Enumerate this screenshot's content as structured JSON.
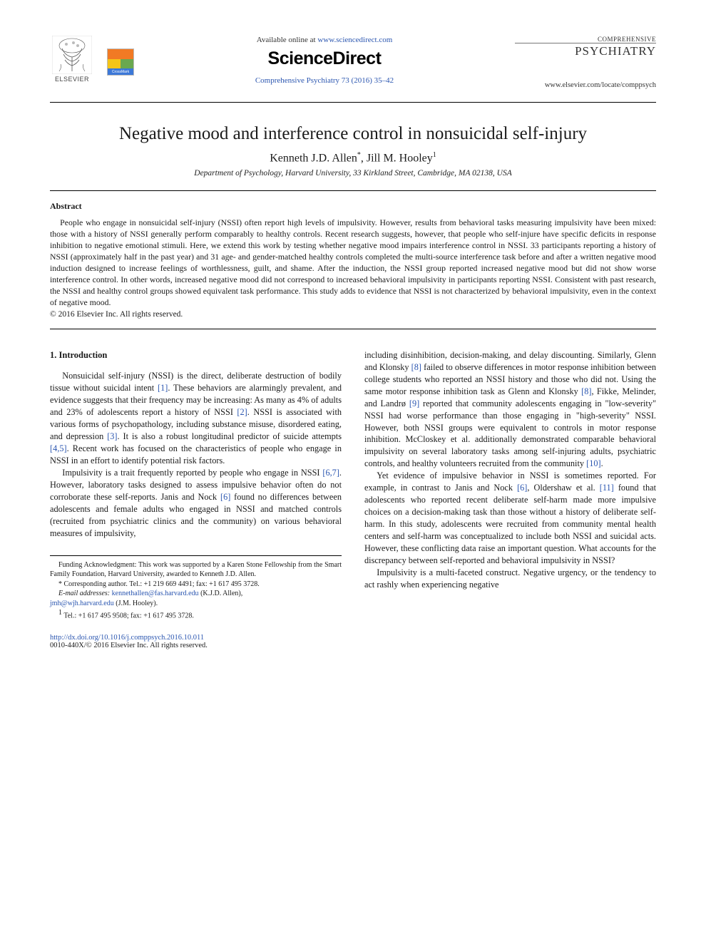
{
  "header": {
    "elsevier_label": "ELSEVIER",
    "available_prefix": "Available online at ",
    "available_url": "www.sciencedirect.com",
    "sd_logo": "ScienceDirect",
    "citation": "Comprehensive Psychiatry 73 (2016) 35–42",
    "journal_small": "COMPREHENSIVE",
    "journal_big": "PSYCHIATRY",
    "locate": "www.elsevier.com/locate/comppsych",
    "crossmark": "CrossMark"
  },
  "article": {
    "title": "Negative mood and interference control in nonsuicidal self-injury",
    "author1": "Kenneth J.D. Allen",
    "author1_mark": "*",
    "author_sep": ", ",
    "author2": "Jill M. Hooley",
    "author2_mark": "1",
    "affiliation": "Department of Psychology, Harvard University, 33 Kirkland Street, Cambridge, MA 02138, USA"
  },
  "abstract": {
    "heading": "Abstract",
    "body": "People who engage in nonsuicidal self-injury (NSSI) often report high levels of impulsivity. However, results from behavioral tasks measuring impulsivity have been mixed: those with a history of NSSI generally perform comparably to healthy controls. Recent research suggests, however, that people who self-injure have specific deficits in response inhibition to negative emotional stimuli. Here, we extend this work by testing whether negative mood impairs interference control in NSSI. 33 participants reporting a history of NSSI (approximately half in the past year) and 31 age- and gender-matched healthy controls completed the multi-source interference task before and after a written negative mood induction designed to increase feelings of worthlessness, guilt, and shame. After the induction, the NSSI group reported increased negative mood but did not show worse interference control. In other words, increased negative mood did not correspond to increased behavioral impulsivity in participants reporting NSSI. Consistent with past research, the NSSI and healthy control groups showed equivalent task performance. This study adds to evidence that NSSI is not characterized by behavioral impulsivity, even in the context of negative mood.",
    "copyright": "© 2016 Elsevier Inc. All rights reserved."
  },
  "body": {
    "section_heading": "1. Introduction",
    "left_paras": [
      "Nonsuicidal self-injury (NSSI) is the direct, deliberate destruction of bodily tissue without suicidal intent [1]. These behaviors are alarmingly prevalent, and evidence suggests that their frequency may be increasing: As many as 4% of adults and 23% of adolescents report a history of NSSI [2]. NSSI is associated with various forms of psychopathology, including substance misuse, disordered eating, and depression [3]. It is also a robust longitudinal predictor of suicide attempts [4,5]. Recent work has focused on the characteristics of people who engage in NSSI in an effort to identify potential risk factors.",
      "Impulsivity is a trait frequently reported by people who engage in NSSI [6,7]. However, laboratory tasks designed to assess impulsive behavior often do not corroborate these self-reports. Janis and Nock [6] found no differences between adolescents and female adults who engaged in NSSI and matched controls (recruited from psychiatric clinics and the community) on various behavioral measures of impulsivity,"
    ],
    "right_paras": [
      "including disinhibition, decision-making, and delay discounting. Similarly, Glenn and Klonsky [8] failed to observe differences in motor response inhibition between college students who reported an NSSI history and those who did not. Using the same motor response inhibition task as Glenn and Klonsky [8], Fikke, Melinder, and Landrø [9] reported that community adolescents engaging in \"low-severity\" NSSI had worse performance than those engaging in \"high-severity\" NSSI. However, both NSSI groups were equivalent to controls in motor response inhibition. McCloskey et al. additionally demonstrated comparable behavioral impulsivity on several laboratory tasks among self-injuring adults, psychiatric controls, and healthy volunteers recruited from the community [10].",
      "Yet evidence of impulsive behavior in NSSI is sometimes reported. For example, in contrast to Janis and Nock [6], Oldershaw et al. [11] found that adolescents who reported recent deliberate self-harm made more impulsive choices on a decision-making task than those without a history of deliberate self-harm. In this study, adolescents were recruited from community mental health centers and self-harm was conceptualized to include both NSSI and suicidal acts. However, these conflicting data raise an important question. What accounts for the discrepancy between self-reported and behavioral impulsivity in NSSI?",
      "Impulsivity is a multi-faceted construct. Negative urgency, or the tendency to act rashly when experiencing negative"
    ]
  },
  "footnotes": {
    "funding": "Funding Acknowledgment: This work was supported by a Karen Stone Fellowship from the Smart Family Foundation, Harvard University, awarded to Kenneth J.D. Allen.",
    "corr_mark": "*",
    "corr": " Corresponding author. Tel.: +1 219 669 4491; fax: +1 617 495 3728.",
    "email_label": "E-mail addresses: ",
    "email1": "kennethallen@fas.harvard.edu",
    "email1_aff": " (K.J.D. Allen), ",
    "email2": "jmh@wjh.harvard.edu",
    "email2_aff": " (J.M. Hooley).",
    "note1_mark": "1",
    "note1": " Tel.: +1 617 495 9508; fax: +1 617 495 3728."
  },
  "doi": {
    "url": "http://dx.doi.org/10.1016/j.comppsych.2016.10.011",
    "issn_line": "0010-440X/© 2016 Elsevier Inc. All rights reserved."
  },
  "refs": {
    "r1": "[1]",
    "r2": "[2]",
    "r3": "[3]",
    "r45": "[4,5]",
    "r67": "[6,7]",
    "r6": "[6]",
    "r8": "[8]",
    "r9": "[9]",
    "r10": "[10]",
    "r11": "[11]"
  },
  "colors": {
    "link": "#2b56b0",
    "text": "#1a1a1a",
    "rule": "#000000",
    "background": "#ffffff"
  },
  "typography": {
    "title_fontsize": 25,
    "author_fontsize": 16,
    "body_fontsize": 12.3,
    "abstract_fontsize": 11.8,
    "footnote_fontsize": 10
  }
}
